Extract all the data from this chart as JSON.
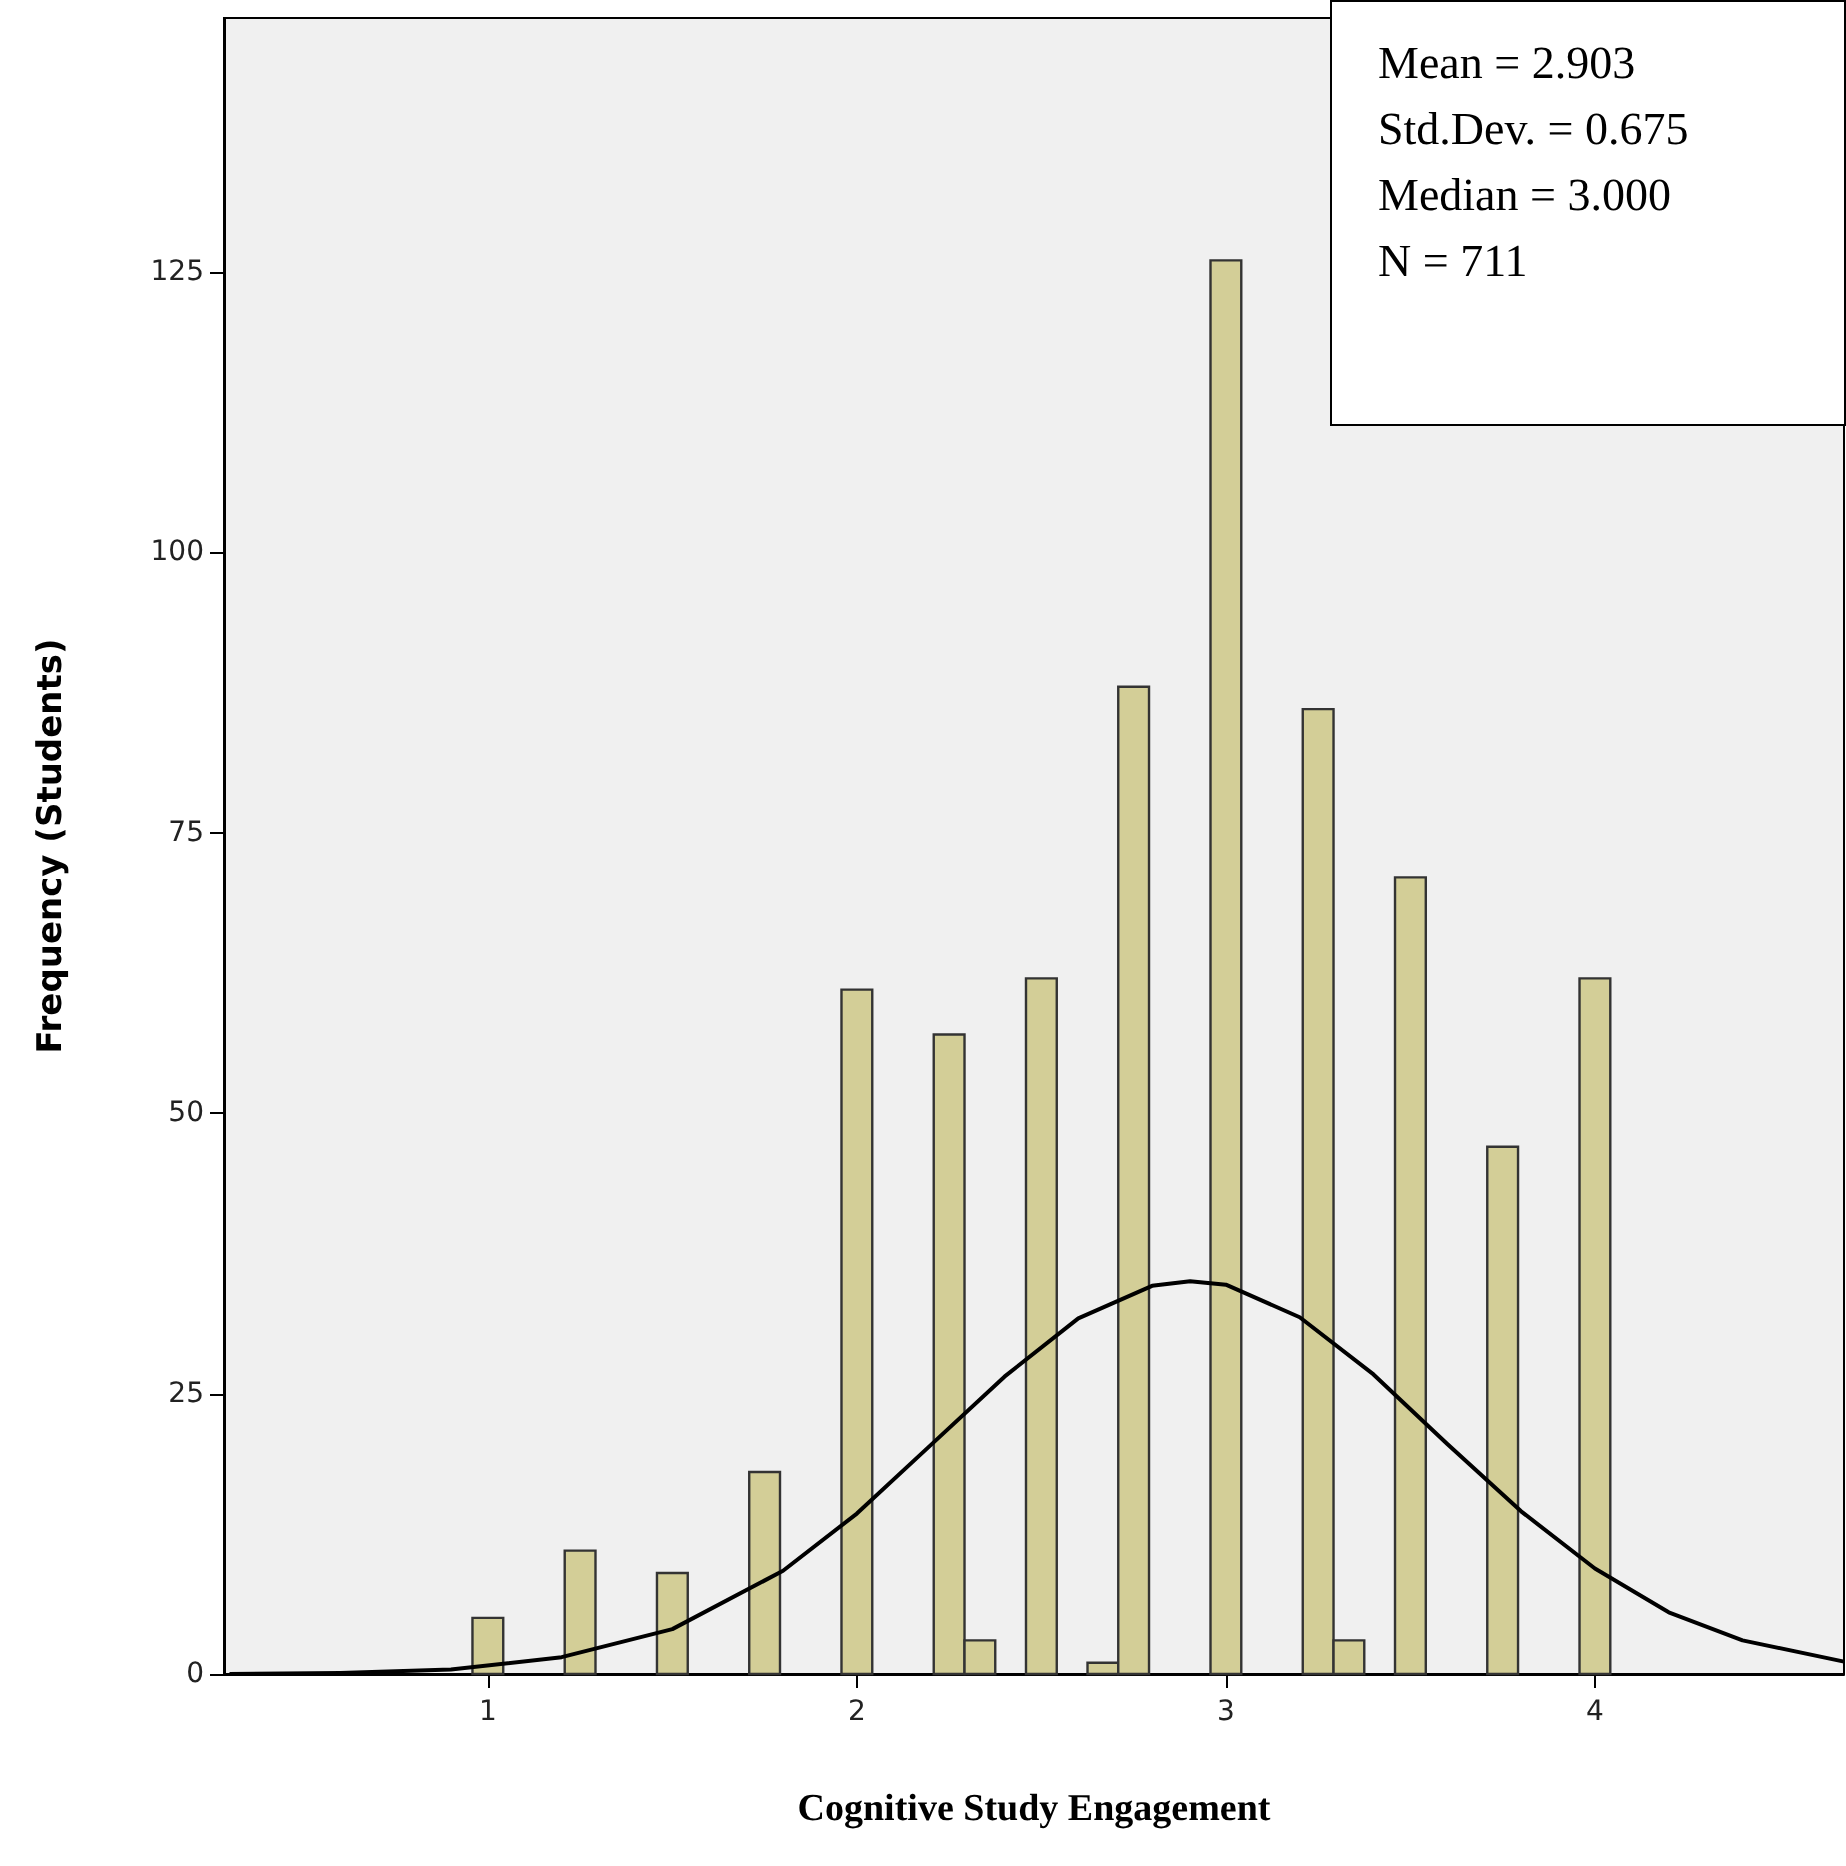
{
  "chart_data": {
    "type": "histogram",
    "xlabel": "Cognitive Study Engagement",
    "ylabel": "Frequency (Students)",
    "annotations": [
      "Mean = 2.903",
      "Std.Dev. = 0.675",
      "Median = 3.000",
      "N = 711"
    ],
    "bins": [
      0.9583,
      1.0417,
      1.125,
      1.2083,
      1.2917,
      1.375,
      1.4583,
      1.5417,
      1.625,
      1.7083,
      1.7917,
      1.875,
      1.9583,
      2.0417,
      2.125,
      2.2083,
      2.2917,
      2.375,
      2.4583,
      2.5417,
      2.625,
      2.7083,
      2.7917,
      2.875,
      2.9583,
      3.0417,
      3.125,
      3.2083,
      3.2917,
      3.375,
      3.4583,
      3.5417,
      3.625,
      3.7083,
      3.7917,
      3.875,
      3.9583,
      4.0417
    ],
    "series": [
      {
        "color": "#d3ce97",
        "values": [
          5,
          0,
          0,
          11,
          0,
          0,
          9,
          0,
          0,
          18,
          0,
          0,
          61,
          0,
          0,
          57,
          3,
          0,
          62,
          0,
          1,
          88,
          0,
          0,
          126,
          0,
          0,
          86,
          3,
          0,
          71,
          0,
          0,
          47,
          0,
          0,
          62
        ]
      },
      {
        "type": "line",
        "color": "#000000",
        "x": [
          0.3,
          0.6,
          0.9,
          1.2,
          1.5,
          1.8,
          2.0,
          2.2,
          2.4,
          2.6,
          2.8,
          2.903,
          3.0,
          3.2,
          3.4,
          3.6,
          3.8,
          4.0,
          4.2,
          4.4,
          4.675
        ],
        "values": [
          0,
          0.1,
          0.4,
          1.5,
          4.0,
          9.2,
          14.3,
          20.4,
          26.5,
          31.7,
          34.6,
          35.0,
          34.7,
          31.8,
          26.7,
          20.5,
          14.5,
          9.4,
          5.5,
          3.0,
          1.1
        ]
      }
    ],
    "xlim": [
      0.285,
      4.675
    ],
    "ylim": [
      0,
      147.6
    ],
    "xticks": [
      1,
      2,
      3,
      4
    ],
    "yticks": [
      0,
      25,
      50,
      75,
      100,
      125
    ],
    "grid": false,
    "marker": "none",
    "line_style": "solid"
  }
}
